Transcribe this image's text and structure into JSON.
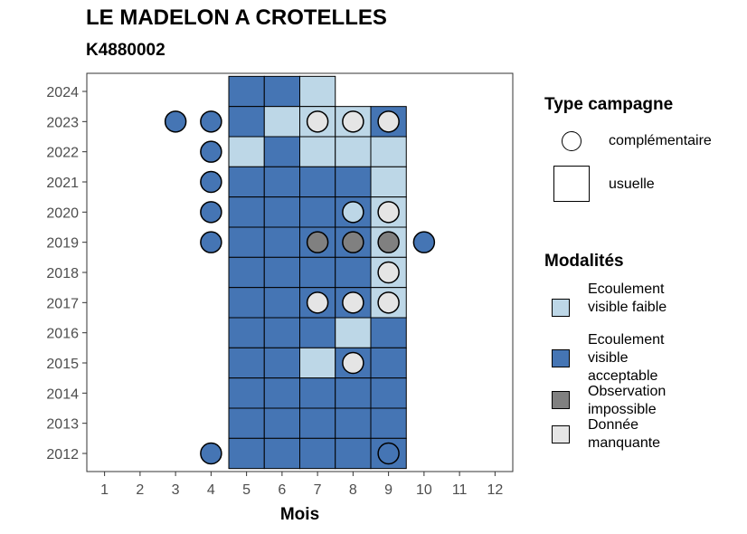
{
  "chart_data": {
    "type": "heatmap",
    "title": "LE MADELON A CROTELLES",
    "subtitle": "K4880002",
    "xlabel": "Mois",
    "ylabel": "",
    "x_ticks": [
      "1",
      "2",
      "3",
      "4",
      "5",
      "6",
      "7",
      "8",
      "9",
      "10",
      "11",
      "12"
    ],
    "y_ticks": [
      "2012",
      "2013",
      "2014",
      "2015",
      "2016",
      "2017",
      "2018",
      "2019",
      "2020",
      "2021",
      "2022",
      "2023",
      "2024"
    ],
    "xlim": [
      0.5,
      12.5
    ],
    "ylim": [
      2011.4,
      2024.6
    ],
    "colors": {
      "faible": "#bdd7e7",
      "acceptable": "#4575b4",
      "impossible": "#808080",
      "manquante": "#e5e5e5"
    },
    "legend": {
      "type_title": "Type campagne",
      "type_items": [
        {
          "key": "complementaire",
          "label": "complémentaire"
        },
        {
          "key": "usuelle",
          "label": "usuelle"
        }
      ],
      "mod_title": "Modalités",
      "mod_items": [
        {
          "key": "faible",
          "label": "Ecoulement visible faible"
        },
        {
          "key": "acceptable",
          "label": "Ecoulement visible acceptable"
        },
        {
          "key": "impossible",
          "label": "Observation impossible"
        },
        {
          "key": "manquante",
          "label": "Donnée manquante"
        }
      ]
    },
    "usuelle": [
      {
        "year": 2024,
        "months": {
          "5": "acceptable",
          "6": "acceptable",
          "7": "faible"
        }
      },
      {
        "year": 2023,
        "months": {
          "5": "acceptable",
          "6": "faible",
          "7": "faible",
          "8": "faible",
          "9": "acceptable"
        }
      },
      {
        "year": 2022,
        "months": {
          "5": "faible",
          "6": "acceptable",
          "7": "faible",
          "8": "faible",
          "9": "faible"
        }
      },
      {
        "year": 2021,
        "months": {
          "5": "acceptable",
          "6": "acceptable",
          "7": "acceptable",
          "8": "acceptable",
          "9": "faible"
        }
      },
      {
        "year": 2020,
        "months": {
          "5": "acceptable",
          "6": "acceptable",
          "7": "acceptable",
          "8": "acceptable",
          "9": "faible"
        }
      },
      {
        "year": 2019,
        "months": {
          "5": "acceptable",
          "6": "acceptable",
          "7": "acceptable",
          "8": "acceptable",
          "9": "faible"
        }
      },
      {
        "year": 2018,
        "months": {
          "5": "acceptable",
          "6": "acceptable",
          "7": "acceptable",
          "8": "acceptable",
          "9": "faible"
        }
      },
      {
        "year": 2017,
        "months": {
          "5": "acceptable",
          "6": "acceptable",
          "7": "acceptable",
          "8": "acceptable",
          "9": "faible"
        }
      },
      {
        "year": 2016,
        "months": {
          "5": "acceptable",
          "6": "acceptable",
          "7": "acceptable",
          "8": "faible",
          "9": "acceptable"
        }
      },
      {
        "year": 2015,
        "months": {
          "5": "acceptable",
          "6": "acceptable",
          "7": "faible",
          "8": "acceptable",
          "9": "acceptable"
        }
      },
      {
        "year": 2014,
        "months": {
          "5": "acceptable",
          "6": "acceptable",
          "7": "acceptable",
          "8": "acceptable",
          "9": "acceptable"
        }
      },
      {
        "year": 2013,
        "months": {
          "5": "acceptable",
          "6": "acceptable",
          "7": "acceptable",
          "8": "acceptable",
          "9": "acceptable"
        }
      },
      {
        "year": 2012,
        "months": {
          "5": "acceptable",
          "6": "acceptable",
          "7": "acceptable",
          "8": "acceptable",
          "9": "acceptable"
        }
      }
    ],
    "complementaire": [
      {
        "year": 2023,
        "month": 3,
        "value": "acceptable"
      },
      {
        "year": 2023,
        "month": 4,
        "value": "acceptable"
      },
      {
        "year": 2023,
        "month": 7,
        "value": "manquante"
      },
      {
        "year": 2023,
        "month": 8,
        "value": "manquante"
      },
      {
        "year": 2023,
        "month": 9,
        "value": "manquante"
      },
      {
        "year": 2022,
        "month": 4,
        "value": "acceptable"
      },
      {
        "year": 2021,
        "month": 4,
        "value": "acceptable"
      },
      {
        "year": 2020,
        "month": 4,
        "value": "acceptable"
      },
      {
        "year": 2020,
        "month": 8,
        "value": "faible"
      },
      {
        "year": 2020,
        "month": 9,
        "value": "manquante"
      },
      {
        "year": 2019,
        "month": 4,
        "value": "acceptable"
      },
      {
        "year": 2019,
        "month": 7,
        "value": "impossible"
      },
      {
        "year": 2019,
        "month": 8,
        "value": "impossible"
      },
      {
        "year": 2019,
        "month": 9,
        "value": "impossible"
      },
      {
        "year": 2019,
        "month": 10,
        "value": "acceptable"
      },
      {
        "year": 2018,
        "month": 9,
        "value": "manquante"
      },
      {
        "year": 2017,
        "month": 7,
        "value": "manquante"
      },
      {
        "year": 2017,
        "month": 8,
        "value": "manquante"
      },
      {
        "year": 2017,
        "month": 9,
        "value": "manquante"
      },
      {
        "year": 2015,
        "month": 8,
        "value": "manquante"
      },
      {
        "year": 2012,
        "month": 4,
        "value": "acceptable"
      },
      {
        "year": 2012,
        "month": 9,
        "value": "acceptable"
      }
    ]
  }
}
